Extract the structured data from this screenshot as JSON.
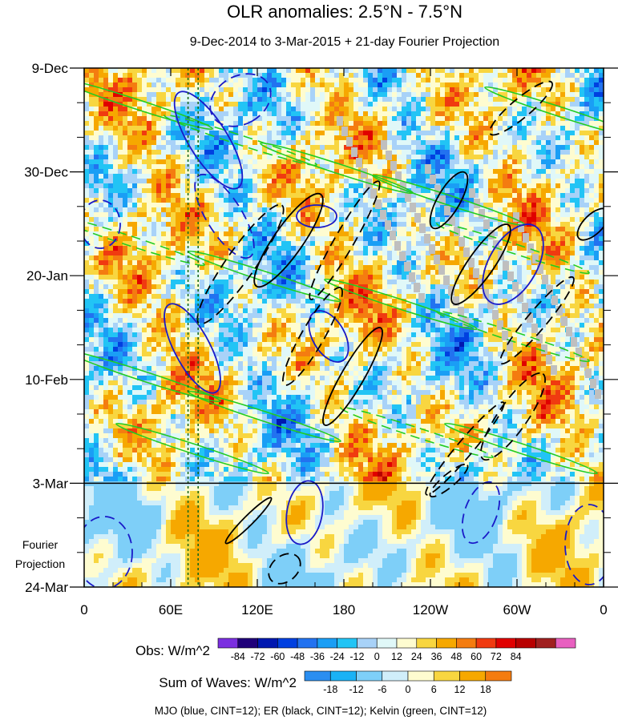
{
  "chart_data": {
    "type": "heatmap",
    "title": "OLR anomalies: 2.5°N - 7.5°N",
    "subtitle": "9-Dec-2014 to 3-Mar-2015 + 21-day Fourier Projection",
    "x_ticks": [
      {
        "lon": 0,
        "label": "0"
      },
      {
        "lon": 60,
        "label": "60E"
      },
      {
        "lon": 120,
        "label": "120E"
      },
      {
        "lon": 180,
        "label": "180"
      },
      {
        "lon": 240,
        "label": "120W"
      },
      {
        "lon": 300,
        "label": "60W"
      },
      {
        "lon": 360,
        "label": "0"
      }
    ],
    "xlim": [
      0,
      360
    ],
    "y_ticks": [
      {
        "day": 0,
        "label": "9-Dec"
      },
      {
        "day": 21,
        "label": "30-Dec"
      },
      {
        "day": 42,
        "label": "20-Jan"
      },
      {
        "day": 63,
        "label": "10-Feb"
      },
      {
        "day": 84,
        "label": "3-Mar"
      },
      {
        "day": 105,
        "label": "24-Mar"
      }
    ],
    "ylim": [
      0,
      105
    ],
    "observation_end_day": 84,
    "fourier_label_lines": [
      "Fourier",
      "Projection"
    ],
    "reference_lines_lon": [
      72,
      79
    ],
    "obs_colorbar": {
      "label": "Obs: W/m^2",
      "ticks": [
        "-84",
        "-72",
        "-60",
        "-48",
        "-36",
        "-24",
        "-12",
        "0",
        "12",
        "24",
        "36",
        "48",
        "60",
        "72",
        "84"
      ],
      "colors": [
        "#7b2fe0",
        "#20007a",
        "#0018b0",
        "#0040e0",
        "#2272f0",
        "#1a9ef5",
        "#22c4f5",
        "#a8d2f8",
        "#e0f8f8",
        "#fefcd0",
        "#f8d640",
        "#f6a800",
        "#f47c10",
        "#f03a10",
        "#e00000",
        "#b80000",
        "#a02020",
        "#e860c0"
      ]
    },
    "waves_colorbar": {
      "label": "Sum of Waves: W/m^2",
      "ticks": [
        "-18",
        "-12",
        "-6",
        "0",
        "6",
        "12",
        "18"
      ],
      "colors": [
        "#2a8ef0",
        "#1ab2f5",
        "#7ecff8",
        "#d0eefa",
        "#fefcd0",
        "#f8d640",
        "#f6a800",
        "#f47c10"
      ]
    },
    "footer": "MJO (blue, CINT=12); ER (black, CINT=12); Kelvin (green, CINT=12)",
    "contour_colors": {
      "mjo": "#1a1ac8",
      "er": "#000000",
      "kelvin": "#22cc22"
    }
  }
}
